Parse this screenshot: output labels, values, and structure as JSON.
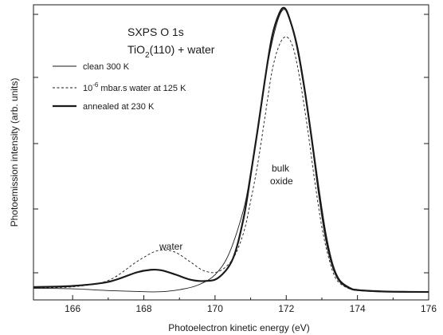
{
  "chart_data": {
    "type": "line",
    "title": "SXPS O 1s",
    "subtitle": {
      "main": "TiO",
      "sub": "2",
      "tail": "(110) + water"
    },
    "xlabel": "Photoelectron kinetic energy   (eV)",
    "ylabel": "Photoemission intensity  (arb. units)",
    "xlim": [
      164.9,
      176.0
    ],
    "ylim": [
      0,
      100
    ],
    "x_ticks": [
      166,
      168,
      170,
      172,
      174,
      176
    ],
    "y_ticks": [],
    "grid": false,
    "legend_position": "upper-left",
    "legend": [
      {
        "label": "clean 300 K",
        "series": 0
      },
      {
        "label_pre": "10",
        "label_sup": "-6",
        "label_post": " mbar.s water at 125 K",
        "series": 1
      },
      {
        "label": "annealed at 230 K",
        "series": 2
      }
    ],
    "annotations": {
      "water": "water",
      "bulk_line1": "bulk",
      "bulk_line2": "oxide"
    },
    "series": [
      {
        "style": "thin-solid",
        "x": [
          164.9,
          166.0,
          167.0,
          168.0,
          168.5,
          169.0,
          169.5,
          170.0,
          170.4,
          170.8,
          171.0,
          171.2,
          171.4,
          171.6,
          171.8,
          171.95,
          172.1,
          172.3,
          172.5,
          172.7,
          172.9,
          173.1,
          173.3,
          173.5,
          173.8,
          174.0,
          174.5,
          175.0,
          176.0
        ],
        "y": [
          2.8,
          2.6,
          2.0,
          1.6,
          1.6,
          2.3,
          3.8,
          7.5,
          15,
          30,
          43,
          58,
          75,
          88,
          97,
          99.5,
          96,
          86,
          72,
          55,
          36,
          20,
          10,
          5,
          2.5,
          2.0,
          1.6,
          1.5,
          1.5
        ]
      },
      {
        "style": "dashed",
        "x": [
          164.9,
          166.0,
          167.0,
          167.8,
          168.3,
          168.6,
          168.9,
          169.3,
          169.7,
          170.1,
          170.5,
          170.8,
          171.0,
          171.2,
          171.4,
          171.6,
          171.8,
          172.0,
          172.2,
          172.4,
          172.6,
          172.8,
          173.0,
          173.2,
          173.4,
          173.7,
          174.0,
          174.5,
          175.0,
          176.0
        ],
        "y": [
          3.0,
          3.3,
          5.5,
          12.0,
          15.5,
          16.0,
          15.2,
          12.0,
          8.8,
          8.6,
          13,
          22,
          33,
          46,
          62,
          78,
          87,
          90,
          86,
          74,
          58,
          40,
          24,
          13,
          6,
          3,
          2.2,
          1.8,
          1.6,
          1.5
        ]
      },
      {
        "style": "thick-solid",
        "x": [
          164.9,
          166.0,
          167.0,
          167.8,
          168.2,
          168.5,
          168.9,
          169.3,
          169.7,
          170.1,
          170.5,
          170.8,
          171.0,
          171.2,
          171.4,
          171.6,
          171.8,
          171.95,
          172.1,
          172.3,
          172.5,
          172.7,
          172.9,
          173.1,
          173.3,
          173.5,
          173.8,
          174.0,
          174.5,
          175.0,
          176.0
        ],
        "y": [
          3.2,
          3.6,
          5.0,
          8.3,
          9.2,
          9.0,
          7.5,
          5.8,
          5.3,
          6.5,
          13,
          27,
          42,
          58,
          75,
          90,
          98,
          100,
          96,
          87,
          73,
          56,
          38,
          22,
          11,
          5.5,
          2.8,
          2.2,
          1.8,
          1.6,
          1.5
        ]
      }
    ]
  }
}
